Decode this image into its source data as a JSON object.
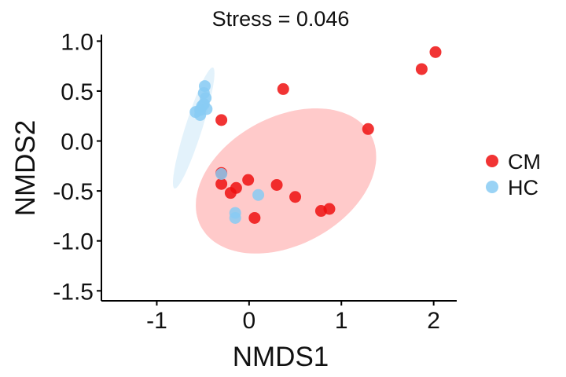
{
  "chart_data": {
    "type": "scatter",
    "title": "Stress = 0.046",
    "xlabel": "NMDS1",
    "ylabel": "NMDS2",
    "xlim": [
      -1.6,
      2.25
    ],
    "ylim": [
      -1.6,
      1.05
    ],
    "xticks": [
      -1,
      0,
      1,
      2
    ],
    "yticks": [
      1.0,
      0.5,
      0.0,
      -0.5,
      -1.0,
      -1.5
    ],
    "xtick_labels": [
      "-1",
      "0",
      "1",
      "2"
    ],
    "ytick_labels": [
      "1.0",
      "0.5",
      "0.0",
      "-0.5",
      "-1.0",
      "-1.5"
    ],
    "grid": false,
    "legend_position": "right",
    "series": [
      {
        "name": "CM",
        "color": "#ee1111",
        "ellipse_color": "#ffc4c4",
        "ellipse": {
          "center": [
            0.4,
            -0.4
          ],
          "semi_axes": [
            1.03,
            0.65
          ],
          "angle_deg": 24
        },
        "points": [
          [
            2.02,
            0.89
          ],
          [
            1.87,
            0.72
          ],
          [
            0.37,
            0.52
          ],
          [
            1.29,
            0.12
          ],
          [
            -0.3,
            0.21
          ],
          [
            -0.3,
            -0.32
          ],
          [
            -0.3,
            -0.43
          ],
          [
            -0.2,
            -0.52
          ],
          [
            -0.14,
            -0.47
          ],
          [
            -0.01,
            -0.39
          ],
          [
            0.3,
            -0.44
          ],
          [
            0.5,
            -0.56
          ],
          [
            0.78,
            -0.7
          ],
          [
            0.87,
            -0.68
          ],
          [
            0.06,
            -0.77
          ]
        ]
      },
      {
        "name": "HC",
        "color": "#88cbf3",
        "ellipse_color": "#d7ecfa",
        "ellipse": {
          "center": [
            -0.6,
            0.13
          ],
          "semi_axes": [
            0.64,
            0.09
          ],
          "angle_deg": 71
        },
        "points": [
          [
            -0.48,
            0.55
          ],
          [
            -0.49,
            0.48
          ],
          [
            -0.47,
            0.43
          ],
          [
            -0.49,
            0.37
          ],
          [
            -0.51,
            0.35
          ],
          [
            -0.46,
            0.32
          ],
          [
            -0.53,
            0.31
          ],
          [
            -0.58,
            0.29
          ],
          [
            -0.53,
            0.26
          ],
          [
            -0.15,
            -0.72
          ],
          [
            -0.15,
            -0.77
          ],
          [
            0.1,
            -0.54
          ],
          [
            -0.3,
            -0.33
          ]
        ]
      }
    ]
  }
}
